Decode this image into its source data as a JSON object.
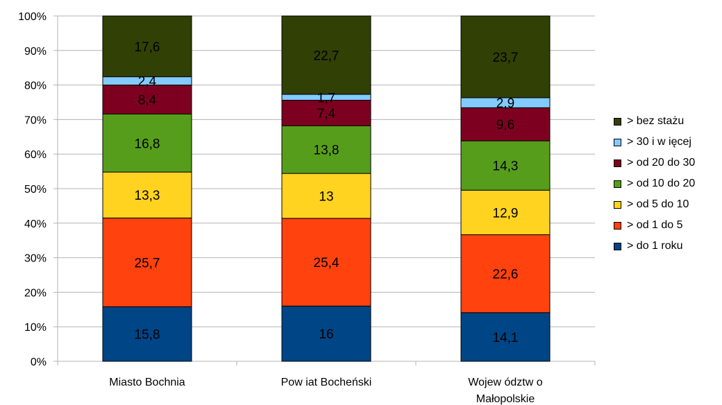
{
  "chart_data": {
    "type": "bar",
    "stacked": true,
    "percent_stacked": true,
    "categories": [
      "Miasto Bochnia",
      "Pow iat Bocheński",
      "Wojew ództw o Małopolskie"
    ],
    "category_lines": [
      [
        "Miasto Bochnia"
      ],
      [
        "Pow iat Bocheński"
      ],
      [
        "Wojew ództw o",
        "Małopolskie"
      ]
    ],
    "series": [
      {
        "name": "> do 1 roku",
        "color": "#004586",
        "values": [
          15.8,
          16,
          14.1
        ],
        "value_labels": [
          "15,8",
          "16",
          "14,1"
        ]
      },
      {
        "name": "> od 1 do 5",
        "color": "#ff420e",
        "values": [
          25.7,
          25.4,
          22.6
        ],
        "value_labels": [
          "25,7",
          "25,4",
          "22,6"
        ]
      },
      {
        "name": "> od 5 do 10",
        "color": "#ffd320",
        "values": [
          13.3,
          13,
          12.9
        ],
        "value_labels": [
          "13,3",
          "13",
          "12,9"
        ]
      },
      {
        "name": "> od 10 do 20",
        "color": "#579d1c",
        "values": [
          16.8,
          13.8,
          14.3
        ],
        "value_labels": [
          "16,8",
          "13,8",
          "14,3"
        ]
      },
      {
        "name": "> od 20 do 30",
        "color": "#7e0021",
        "values": [
          8.4,
          7.4,
          9.6
        ],
        "value_labels": [
          "8,4",
          "7,4",
          "9,6"
        ]
      },
      {
        "name": "> 30 i w ięcej",
        "color": "#83caff",
        "values": [
          2.4,
          1.7,
          2.9
        ],
        "value_labels": [
          "2,4",
          "1,7",
          "2,9"
        ]
      },
      {
        "name": "> bez stażu",
        "color": "#314004",
        "values": [
          17.6,
          22.7,
          23.7
        ],
        "value_labels": [
          "17,6",
          "22,7",
          "23,7"
        ]
      }
    ],
    "ylim": [
      0,
      100
    ],
    "yticks": [
      0,
      10,
      20,
      30,
      40,
      50,
      60,
      70,
      80,
      90,
      100
    ],
    "ytick_labels": [
      "0%",
      "10%",
      "20%",
      "30%",
      "40%",
      "50%",
      "60%",
      "70%",
      "80%",
      "90%",
      "100%"
    ],
    "grid": true,
    "legend_position": "right",
    "legend_order": [
      6,
      5,
      4,
      3,
      2,
      1,
      0
    ]
  }
}
